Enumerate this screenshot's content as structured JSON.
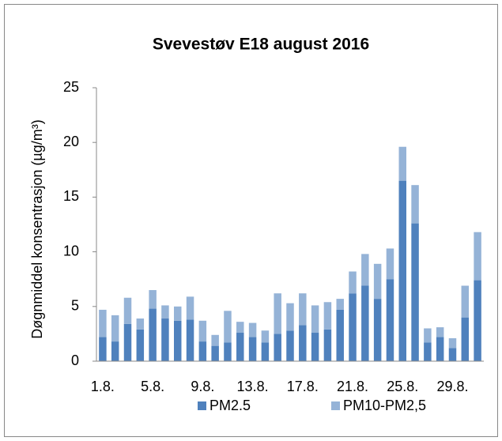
{
  "chart_data": {
    "type": "stacked_bar",
    "title": "Svevestøv E18 august 2016",
    "y_label": "Døgnmiddel konsentrasjon (µg/m³)",
    "categories": [
      "1.8.",
      null,
      null,
      null,
      "5.8.",
      null,
      null,
      null,
      "9.8.",
      null,
      null,
      null,
      "13.8.",
      null,
      null,
      null,
      "17.8.",
      null,
      null,
      null,
      "21.8.",
      null,
      null,
      null,
      "25.8.",
      null,
      null,
      null,
      "29.8.",
      null,
      null
    ],
    "series": [
      {
        "name": "PM2.5",
        "color": "#4f81bd",
        "values": [
          2.2,
          1.8,
          3.4,
          2.9,
          4.8,
          3.9,
          3.7,
          3.8,
          1.8,
          1.4,
          1.7,
          2.6,
          2.2,
          1.7,
          2.5,
          2.8,
          3.3,
          2.6,
          2.9,
          4.7,
          6.2,
          6.9,
          5.7,
          7.5,
          16.5,
          12.6,
          1.7,
          2.2,
          1.2,
          4.0,
          7.4
        ]
      },
      {
        "name": "PM10-PM2,5",
        "color": "#95b3d7",
        "values": [
          2.5,
          2.4,
          2.4,
          1.0,
          1.7,
          1.2,
          1.3,
          2.1,
          1.9,
          1.0,
          2.9,
          1.0,
          1.3,
          1.1,
          3.7,
          2.5,
          2.9,
          2.5,
          2.5,
          1.0,
          2.0,
          2.9,
          3.2,
          2.8,
          3.1,
          3.5,
          1.3,
          0.9,
          0.9,
          2.9,
          4.4
        ]
      }
    ],
    "ylim": [
      0,
      25
    ],
    "yticks": [
      0,
      5,
      10,
      15,
      20,
      25
    ],
    "grid": false,
    "legend": "bottom"
  }
}
